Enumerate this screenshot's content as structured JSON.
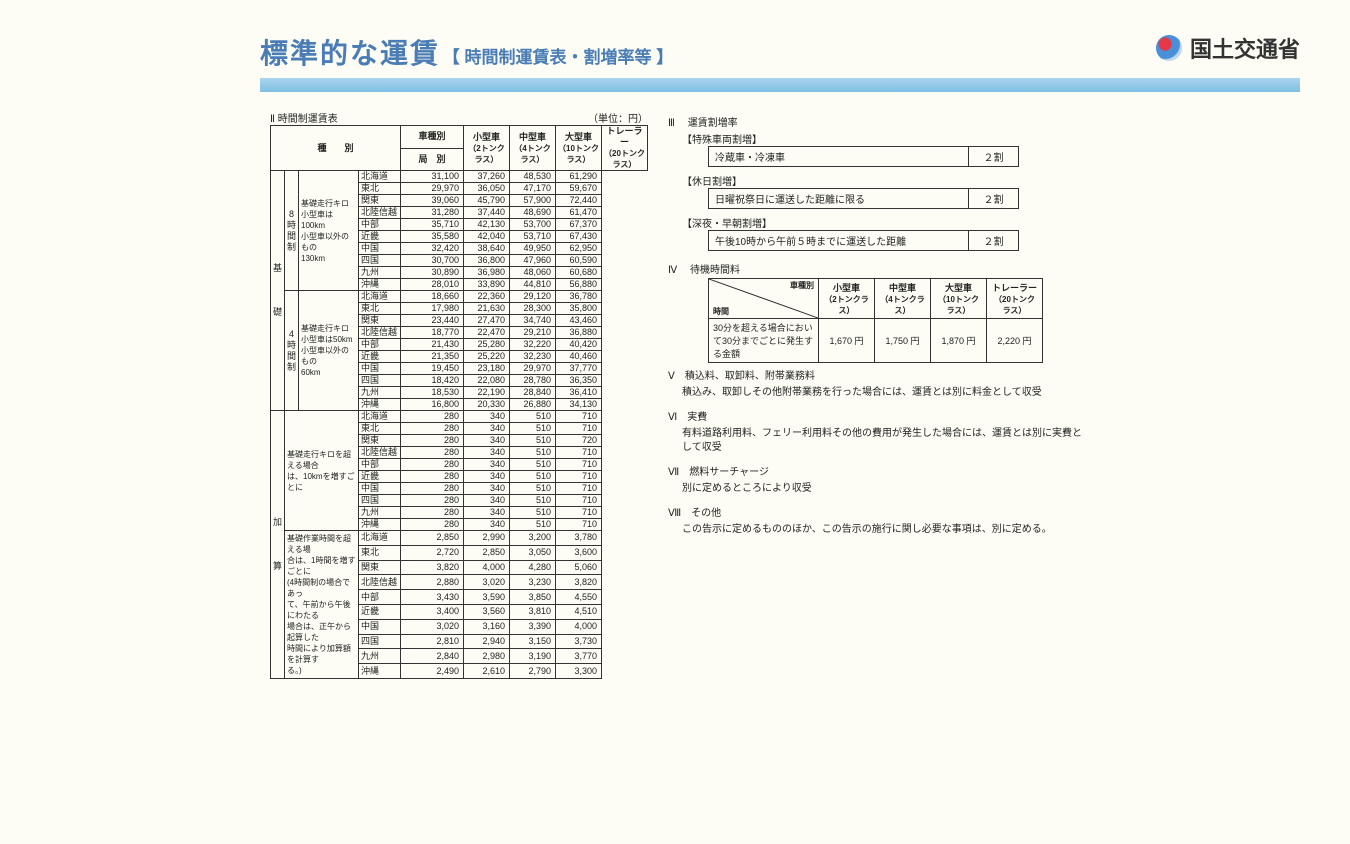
{
  "header": {
    "title": "標準的な運賃",
    "subtitle": "【 時間制運賃表・割増率等 】",
    "logo_text": "国土交通省"
  },
  "left": {
    "section_no": "Ⅱ",
    "section_title": "時間制運賃表",
    "unit_label": "（単位：円）",
    "col_type": "種　　別",
    "col_vehicle": "車種別",
    "col_bureau": "局　別",
    "vehicles": [
      {
        "name": "小型車",
        "sub": "（2トンクラス）"
      },
      {
        "name": "中型車",
        "sub": "（4トンクラス）"
      },
      {
        "name": "大型車",
        "sub": "（10トンクラス）"
      },
      {
        "name": "トレーラー",
        "sub": "（20トンクラス）"
      }
    ],
    "regions": [
      "北海道",
      "東北",
      "関東",
      "北陸信越",
      "中部",
      "近畿",
      "中国",
      "四国",
      "九州",
      "沖縄"
    ],
    "groups": [
      {
        "v1": "基",
        "v2": "礎",
        "blocks": [
          {
            "plan_top": "8",
            "plan": "時間制",
            "desc_lines": [
              "基礎走行キロ",
              "小型車は100km",
              "小型車以外のもの",
              "130km"
            ],
            "rows": [
              [
                "31,100",
                "37,260",
                "48,530",
                "61,290"
              ],
              [
                "29,970",
                "36,050",
                "47,170",
                "59,670"
              ],
              [
                "39,060",
                "45,790",
                "57,900",
                "72,440"
              ],
              [
                "31,280",
                "37,440",
                "48,690",
                "61,470"
              ],
              [
                "35,710",
                "42,130",
                "53,700",
                "67,370"
              ],
              [
                "35,580",
                "42,040",
                "53,710",
                "67,430"
              ],
              [
                "32,420",
                "38,640",
                "49,950",
                "62,950"
              ],
              [
                "30,700",
                "36,800",
                "47,960",
                "60,590"
              ],
              [
                "30,890",
                "36,980",
                "48,060",
                "60,680"
              ],
              [
                "28,010",
                "33,890",
                "44,810",
                "56,880"
              ]
            ]
          },
          {
            "plan_top": "4",
            "plan": "時間制",
            "desc_lines": [
              "基礎走行キロ",
              "小型車は50km",
              "小型車以外のもの",
              "60km"
            ],
            "rows": [
              [
                "18,660",
                "22,360",
                "29,120",
                "36,780"
              ],
              [
                "17,980",
                "21,630",
                "28,300",
                "35,800"
              ],
              [
                "23,440",
                "27,470",
                "34,740",
                "43,460"
              ],
              [
                "18,770",
                "22,470",
                "29,210",
                "36,880"
              ],
              [
                "21,430",
                "25,280",
                "32,220",
                "40,420"
              ],
              [
                "21,350",
                "25,220",
                "32,230",
                "40,460"
              ],
              [
                "19,450",
                "23,180",
                "29,970",
                "37,770"
              ],
              [
                "18,420",
                "22,080",
                "28,780",
                "36,350"
              ],
              [
                "18,530",
                "22,190",
                "28,840",
                "36,410"
              ],
              [
                "16,800",
                "20,330",
                "26,880",
                "34,130"
              ]
            ]
          }
        ]
      },
      {
        "v1": "加",
        "v2": "算",
        "blocks": [
          {
            "plan_top": "",
            "plan": "",
            "desc_lines": [
              "基礎走行キロを超える場合",
              "は、10kmを増すごとに"
            ],
            "rows": [
              [
                "280",
                "340",
                "510",
                "710"
              ],
              [
                "280",
                "340",
                "510",
                "710"
              ],
              [
                "280",
                "340",
                "510",
                "720"
              ],
              [
                "280",
                "340",
                "510",
                "710"
              ],
              [
                "280",
                "340",
                "510",
                "710"
              ],
              [
                "280",
                "340",
                "510",
                "710"
              ],
              [
                "280",
                "340",
                "510",
                "710"
              ],
              [
                "280",
                "340",
                "510",
                "710"
              ],
              [
                "280",
                "340",
                "510",
                "710"
              ],
              [
                "280",
                "340",
                "510",
                "710"
              ]
            ]
          },
          {
            "plan_top": "",
            "plan": "",
            "desc_lines": [
              "基礎作業時間を超える場",
              "合は、1時間を増すごとに",
              "(4時間制の場合であっ",
              "て、午前から午後にわたる",
              "場合は、正午から起算した",
              "時間により加算額を計算す",
              "る。)"
            ],
            "rows": [
              [
                "2,850",
                "2,990",
                "3,200",
                "3,780"
              ],
              [
                "2,720",
                "2,850",
                "3,050",
                "3,600"
              ],
              [
                "3,820",
                "4,000",
                "4,280",
                "5,060"
              ],
              [
                "2,880",
                "3,020",
                "3,230",
                "3,820"
              ],
              [
                "3,430",
                "3,590",
                "3,850",
                "4,550"
              ],
              [
                "3,400",
                "3,560",
                "3,810",
                "4,510"
              ],
              [
                "3,020",
                "3,160",
                "3,390",
                "4,000"
              ],
              [
                "2,810",
                "2,940",
                "3,150",
                "3,730"
              ],
              [
                "2,840",
                "2,980",
                "3,190",
                "3,770"
              ],
              [
                "2,490",
                "2,610",
                "2,790",
                "3,300"
              ]
            ]
          }
        ]
      }
    ]
  },
  "right": {
    "sec3": {
      "no": "Ⅲ",
      "title": "運賃割増率"
    },
    "surcharge_groups": [
      {
        "label": "【特殊車両割増】",
        "item": "冷蔵車・冷凍車",
        "rate": "２割"
      },
      {
        "label": "【休日割増】",
        "item": "日曜祝祭日に運送した距離に限る",
        "rate": "２割"
      },
      {
        "label": "【深夜・早朝割増】",
        "item": "午後10時から午前５時までに運送した距離",
        "rate": "２割"
      }
    ],
    "sec4": {
      "no": "Ⅳ",
      "title": "待機時間料"
    },
    "wait": {
      "diag_top": "車種別",
      "diag_bottom": "時間",
      "vehicles": [
        {
          "name": "小型車",
          "sub": "（2トンクラス）"
        },
        {
          "name": "中型車",
          "sub": "（4トンクラス）"
        },
        {
          "name": "大型車",
          "sub": "（10トンクラス）"
        },
        {
          "name": "トレーラー",
          "sub": "（20トンクラス）"
        }
      ],
      "row_label": "30分を超える場合において30分までごとに発生する金額",
      "values": [
        "1,670 円",
        "1,750 円",
        "1,870 円",
        "2,220 円"
      ]
    },
    "paras": [
      {
        "no": "Ⅴ",
        "title": "積込料、取卸料、附帯業務料",
        "body": "積込み、取卸しその他附帯業務を行った場合には、運賃とは別に料金として収受"
      },
      {
        "no": "Ⅵ",
        "title": "実費",
        "body": "有料道路利用料、フェリー利用料その他の費用が発生した場合には、運賃とは別に実費として収受"
      },
      {
        "no": "Ⅶ",
        "title": "燃料サーチャージ",
        "body": "別に定めるところにより収受"
      },
      {
        "no": "Ⅷ",
        "title": "その他",
        "body": "この告示に定めるもののほか、この告示の施行に関し必要な事項は、別に定める。"
      }
    ]
  }
}
